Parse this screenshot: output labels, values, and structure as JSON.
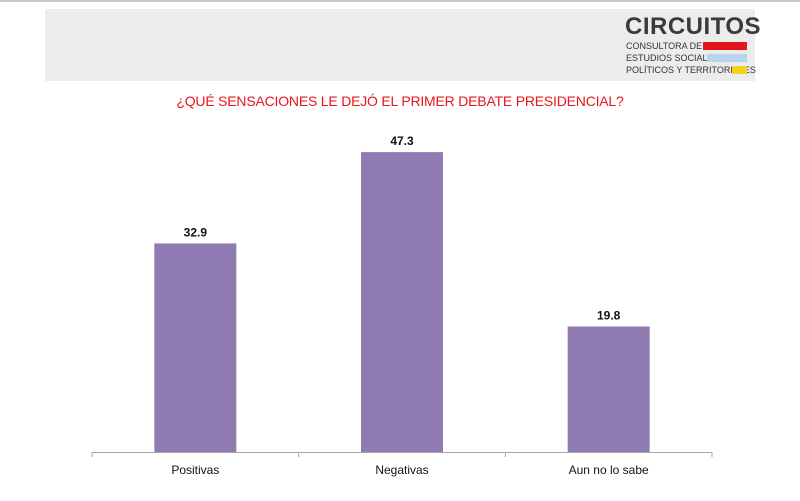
{
  "brand": {
    "name": "CIRCUITOS",
    "line1": "CONSULTORA DE",
    "line2": "ESTUDIOS SOCIALES,",
    "line3": "POLÍTICOS Y TERRITORIALES",
    "colors": {
      "red": "#e3161f",
      "blue": "#b7d5ee",
      "yellow": "#f5d21c"
    }
  },
  "chart_data": {
    "type": "bar",
    "title": "¿QUÉ SENSACIONES LE DEJÓ EL PRIMER DEBATE PRESIDENCIAL?",
    "categories": [
      "Positivas",
      "Negativas",
      "Aun no lo sabe"
    ],
    "values": [
      32.9,
      47.3,
      19.8
    ],
    "value_labels": [
      "32.9",
      "47.3",
      "19.8"
    ],
    "xlabel": "",
    "ylabel": "",
    "ylim": [
      0,
      50
    ],
    "grid": false,
    "bar_color": "#8f7ab1",
    "title_color": "#e8141c"
  }
}
